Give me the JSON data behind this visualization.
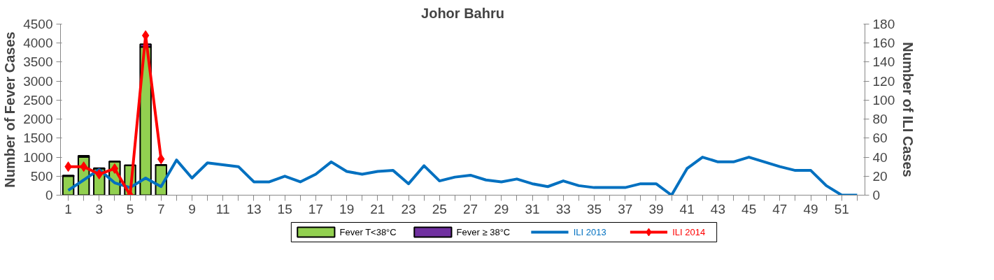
{
  "chart_data": {
    "type": "bar",
    "title": "Johor Bahru",
    "ylabel": "Number of Fever Cases",
    "y2label": "Number of ILI Cases",
    "x": [
      1,
      2,
      3,
      4,
      5,
      6,
      7,
      8,
      9,
      10,
      11,
      12,
      13,
      14,
      15,
      16,
      17,
      18,
      19,
      20,
      21,
      22,
      23,
      24,
      25,
      26,
      27,
      28,
      29,
      30,
      31,
      32,
      33,
      34,
      35,
      36,
      37,
      38,
      39,
      40,
      41,
      42,
      43,
      44,
      45,
      46,
      47,
      48,
      49,
      50,
      51,
      52
    ],
    "xlim": [
      0.5,
      52.5
    ],
    "xticks": [
      1,
      {
        "value": 2,
        "label": null
      },
      3,
      {
        "value": 4,
        "label": null
      },
      5,
      {
        "value": 6,
        "label": null
      },
      7,
      {
        "value": 8,
        "label": null
      },
      9,
      {
        "value": 10,
        "label": null
      },
      11,
      {
        "value": 12,
        "label": null
      },
      13,
      {
        "value": 14,
        "label": null
      },
      15,
      {
        "value": 16,
        "label": null
      },
      17,
      {
        "value": 18,
        "label": null
      },
      19,
      {
        "value": 20,
        "label": null
      },
      21,
      {
        "value": 22,
        "label": null
      },
      23,
      {
        "value": 24,
        "label": null
      },
      25,
      {
        "value": 26,
        "label": null
      },
      27,
      {
        "value": 28,
        "label": null
      },
      29,
      {
        "value": 30,
        "label": null
      },
      31,
      {
        "value": 32,
        "label": null
      },
      33,
      {
        "value": 34,
        "label": null
      },
      35,
      {
        "value": 36,
        "label": null
      },
      37,
      {
        "value": 38,
        "label": null
      },
      39,
      {
        "value": 40,
        "label": null
      },
      41,
      {
        "value": 42,
        "label": null
      },
      43,
      {
        "value": 44,
        "label": null
      },
      45,
      {
        "value": 46,
        "label": null
      },
      47,
      {
        "value": 48,
        "label": null
      },
      49,
      {
        "value": 50,
        "label": null
      },
      51,
      {
        "value": 52,
        "label": null
      }
    ],
    "ylim": [
      0,
      4500
    ],
    "yticks": [
      0,
      500,
      1000,
      1500,
      2000,
      2500,
      3000,
      3500,
      4000,
      4500
    ],
    "y2lim": [
      0,
      180
    ],
    "y2ticks": [
      0,
      20,
      40,
      60,
      80,
      100,
      120,
      140,
      160,
      180
    ],
    "stacked": true,
    "grid": false,
    "legend": "bottom",
    "series": [
      {
        "name": "Fever T<38°C",
        "type": "bar",
        "color": "#92d050",
        "values": [
          500,
          1000,
          700,
          880,
          780,
          3900,
          790,
          null,
          null,
          null,
          null,
          null,
          null,
          null,
          null,
          null,
          null,
          null,
          null,
          null,
          null,
          null,
          null,
          null,
          null,
          null,
          null,
          null,
          null,
          null,
          null,
          null,
          null,
          null,
          null,
          null,
          null,
          null,
          null,
          null,
          null,
          null,
          null,
          null,
          null,
          null,
          null,
          null,
          null,
          null,
          null,
          null
        ]
      },
      {
        "name": "Fever ≥ 38°C",
        "type": "bar",
        "color": "#7030a0",
        "values": [
          20,
          40,
          10,
          10,
          10,
          70,
          10,
          null,
          null,
          null,
          null,
          null,
          null,
          null,
          null,
          null,
          null,
          null,
          null,
          null,
          null,
          null,
          null,
          null,
          null,
          null,
          null,
          null,
          null,
          null,
          null,
          null,
          null,
          null,
          null,
          null,
          null,
          null,
          null,
          null,
          null,
          null,
          null,
          null,
          null,
          null,
          null,
          null,
          null,
          null,
          null,
          null
        ]
      },
      {
        "name": "ILI 2013",
        "type": "line",
        "axis": "y2",
        "color": "#0070c0",
        "marker": "none",
        "values": [
          5,
          16,
          27,
          13,
          8,
          18,
          9,
          37,
          18,
          34,
          32,
          30,
          14,
          14,
          20,
          14,
          22,
          35,
          25,
          22,
          25,
          26,
          12,
          31,
          15,
          19,
          21,
          16,
          14,
          17,
          12,
          9,
          15,
          10,
          8,
          8,
          8,
          12,
          12,
          0,
          28,
          40,
          35,
          35,
          40,
          35,
          30,
          26,
          26,
          10,
          0,
          0
        ]
      },
      {
        "name": "ILI 2014",
        "type": "line",
        "axis": "y2",
        "color": "#ff0000",
        "marker": "diamond",
        "values": [
          30,
          30,
          22,
          28,
          0,
          168,
          38,
          null,
          null,
          null,
          null,
          null,
          null,
          null,
          null,
          null,
          null,
          null,
          null,
          null,
          null,
          null,
          null,
          null,
          null,
          null,
          null,
          null,
          null,
          null,
          null,
          null,
          null,
          null,
          null,
          null,
          null,
          null,
          null,
          null,
          null,
          null,
          null,
          null,
          null,
          null,
          null,
          null,
          null,
          null,
          null,
          null
        ]
      }
    ]
  }
}
